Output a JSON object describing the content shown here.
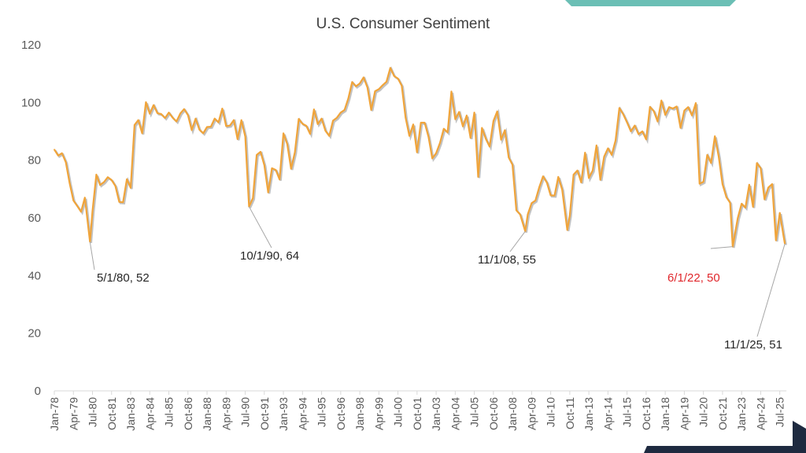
{
  "colors": {
    "line": "#f0a43a",
    "shadow": "#9a9a9a",
    "highlight": "#e0262b",
    "accent_teal": "#6bbfb5",
    "accent_navy": "#1e2a40"
  },
  "chart_data": {
    "type": "line",
    "title": "U.S. Consumer Sentiment",
    "xlabel": "",
    "ylabel": "",
    "ylim": [
      0,
      120
    ],
    "yticks": [
      0,
      20,
      40,
      60,
      80,
      100,
      120
    ],
    "xrange": [
      "1978-01",
      "2025-11"
    ],
    "xtick_labels": [
      "Jan-78",
      "Apr-79",
      "Jul-80",
      "Oct-81",
      "Jan-83",
      "Apr-84",
      "Jul-85",
      "Oct-86",
      "Jan-88",
      "Apr-89",
      "Jul-90",
      "Oct-91",
      "Jan-93",
      "Apr-94",
      "Jul-95",
      "Oct-96",
      "Jan-98",
      "Apr-99",
      "Jul-00",
      "Oct-01",
      "Jan-03",
      "Apr-04",
      "Jul-05",
      "Oct-06",
      "Jan-08",
      "Apr-09",
      "Jul-10",
      "Oct-11",
      "Jan-13",
      "Apr-14",
      "Jul-15",
      "Oct-16",
      "Jan-18",
      "Apr-19",
      "Jul-20",
      "Oct-21",
      "Jan-23",
      "Apr-24",
      "Jul-25"
    ],
    "grid": false,
    "series": [
      {
        "x": [
          "1978-01",
          "1978-04",
          "1978-07",
          "1978-10",
          "1979-01",
          "1979-04",
          "1979-07",
          "1979-10",
          "1980-01",
          "1980-05",
          "1980-07",
          "1980-10",
          "1981-01",
          "1981-04",
          "1981-07",
          "1981-10",
          "1982-01",
          "1982-04",
          "1982-07",
          "1982-10",
          "1983-01",
          "1983-04",
          "1983-07",
          "1983-10",
          "1984-01",
          "1984-04",
          "1984-07",
          "1984-10",
          "1985-01",
          "1985-04",
          "1985-07",
          "1985-10",
          "1986-01",
          "1986-04",
          "1986-07",
          "1986-10",
          "1987-01",
          "1987-04",
          "1987-07",
          "1987-10",
          "1988-01",
          "1988-04",
          "1988-07",
          "1988-10",
          "1989-01",
          "1989-04",
          "1989-07",
          "1989-10",
          "1990-01",
          "1990-04",
          "1990-07",
          "1990-10",
          "1991-01",
          "1991-04",
          "1991-07",
          "1991-10",
          "1992-01",
          "1992-04",
          "1992-07",
          "1992-10",
          "1993-01",
          "1993-04",
          "1993-07",
          "1993-10",
          "1994-01",
          "1994-04",
          "1994-07",
          "1994-10",
          "1995-01",
          "1995-04",
          "1995-07",
          "1995-10",
          "1996-01",
          "1996-04",
          "1996-07",
          "1996-10",
          "1997-01",
          "1997-04",
          "1997-07",
          "1997-10",
          "1998-01",
          "1998-04",
          "1998-07",
          "1998-10",
          "1999-01",
          "1999-04",
          "1999-07",
          "1999-10",
          "2000-01",
          "2000-04",
          "2000-07",
          "2000-10",
          "2001-01",
          "2001-04",
          "2001-07",
          "2001-10",
          "2002-01",
          "2002-04",
          "2002-07",
          "2002-10",
          "2003-01",
          "2003-04",
          "2003-07",
          "2003-10",
          "2004-01",
          "2004-04",
          "2004-07",
          "2004-10",
          "2005-01",
          "2005-04",
          "2005-07",
          "2005-10",
          "2006-01",
          "2006-04",
          "2006-07",
          "2006-10",
          "2007-01",
          "2007-04",
          "2007-07",
          "2007-10",
          "2008-01",
          "2008-04",
          "2008-07",
          "2008-11",
          "2009-01",
          "2009-04",
          "2009-07",
          "2009-10",
          "2010-01",
          "2010-04",
          "2010-07",
          "2010-10",
          "2011-01",
          "2011-04",
          "2011-08",
          "2011-10",
          "2012-01",
          "2012-04",
          "2012-07",
          "2012-10",
          "2013-01",
          "2013-04",
          "2013-07",
          "2013-10",
          "2014-01",
          "2014-04",
          "2014-07",
          "2014-10",
          "2015-01",
          "2015-04",
          "2015-07",
          "2015-10",
          "2016-01",
          "2016-04",
          "2016-07",
          "2016-10",
          "2017-01",
          "2017-04",
          "2017-07",
          "2017-10",
          "2018-01",
          "2018-04",
          "2018-07",
          "2018-10",
          "2019-01",
          "2019-04",
          "2019-07",
          "2019-10",
          "2020-01",
          "2020-04",
          "2020-07",
          "2020-10",
          "2021-01",
          "2021-04",
          "2021-07",
          "2021-10",
          "2022-01",
          "2022-04",
          "2022-06",
          "2022-10",
          "2023-01",
          "2023-04",
          "2023-07",
          "2023-10",
          "2024-01",
          "2024-04",
          "2024-07",
          "2024-10",
          "2025-01",
          "2025-04",
          "2025-07",
          "2025-10",
          "2025-11"
        ],
        "y": [
          83.7,
          81.6,
          82.4,
          79.3,
          72.1,
          66.0,
          64.1,
          62.1,
          67.0,
          51.7,
          62.3,
          75.0,
          71.4,
          72.4,
          74.1,
          73.1,
          71.0,
          65.5,
          65.4,
          73.4,
          70.4,
          92.2,
          93.9,
          89.3,
          100.1,
          96.1,
          99.1,
          96.3,
          96.0,
          94.6,
          96.5,
          94.7,
          93.4,
          96.2,
          97.7,
          95.6,
          90.4,
          94.4,
          90.6,
          89.3,
          91.5,
          91.6,
          94.4,
          93.1,
          97.9,
          91.8,
          92.0,
          93.9,
          87.3,
          93.9,
          88.2,
          63.9,
          66.8,
          81.8,
          82.9,
          78.3,
          68.8,
          77.2,
          76.6,
          73.3,
          89.3,
          85.6,
          77.0,
          82.7,
          94.3,
          92.6,
          91.9,
          89.1,
          97.6,
          92.5,
          94.4,
          90.2,
          88.4,
          93.7,
          94.7,
          96.5,
          97.4,
          101.4,
          107.1,
          105.6,
          106.6,
          108.7,
          105.2,
          97.4,
          103.9,
          104.6,
          106.0,
          107.2,
          112.0,
          109.2,
          108.3,
          105.8,
          94.7,
          88.4,
          92.4,
          82.7,
          93.0,
          93.0,
          88.1,
          80.6,
          82.4,
          86.0,
          90.9,
          89.6,
          103.8,
          94.2,
          96.7,
          91.7,
          95.5,
          87.7,
          96.5,
          74.2,
          91.2,
          87.4,
          84.7,
          93.6,
          96.9,
          87.1,
          90.4,
          80.9,
          78.4,
          62.6,
          61.2,
          55.3,
          61.2,
          65.1,
          66.0,
          70.6,
          74.4,
          72.2,
          67.8,
          67.7,
          74.2,
          69.8,
          55.8,
          60.8,
          75.0,
          76.4,
          72.3,
          82.6,
          73.8,
          76.4,
          85.1,
          73.2,
          81.2,
          84.1,
          81.8,
          86.9,
          98.1,
          95.9,
          93.1,
          90.0,
          92.0,
          89.0,
          90.0,
          87.2,
          98.5,
          97.0,
          93.4,
          100.7,
          95.7,
          98.4,
          97.9,
          98.6,
          91.2,
          97.2,
          98.4,
          95.5,
          99.8,
          71.8,
          72.5,
          81.8,
          79.0,
          88.3,
          81.2,
          71.7,
          67.2,
          65.2,
          50.0,
          59.9,
          64.9,
          63.5,
          71.5,
          63.8,
          79.0,
          77.2,
          66.4,
          70.5,
          71.7,
          52.2,
          61.7,
          53.6,
          51.0
        ]
      }
    ],
    "annotations": [
      {
        "label": "5/1/80, 52",
        "x": "1980-05",
        "y": 51.7,
        "highlight": false
      },
      {
        "label": "10/1/90, 64",
        "x": "1990-10",
        "y": 63.9,
        "highlight": false
      },
      {
        "label": "11/1/08, 55",
        "x": "2008-11",
        "y": 55.3,
        "highlight": false
      },
      {
        "label": "6/1/22, 50",
        "x": "2022-06",
        "y": 50.0,
        "highlight": true
      },
      {
        "label": "11/1/25, 51",
        "x": "2025-11",
        "y": 51.0,
        "highlight": false
      }
    ]
  }
}
